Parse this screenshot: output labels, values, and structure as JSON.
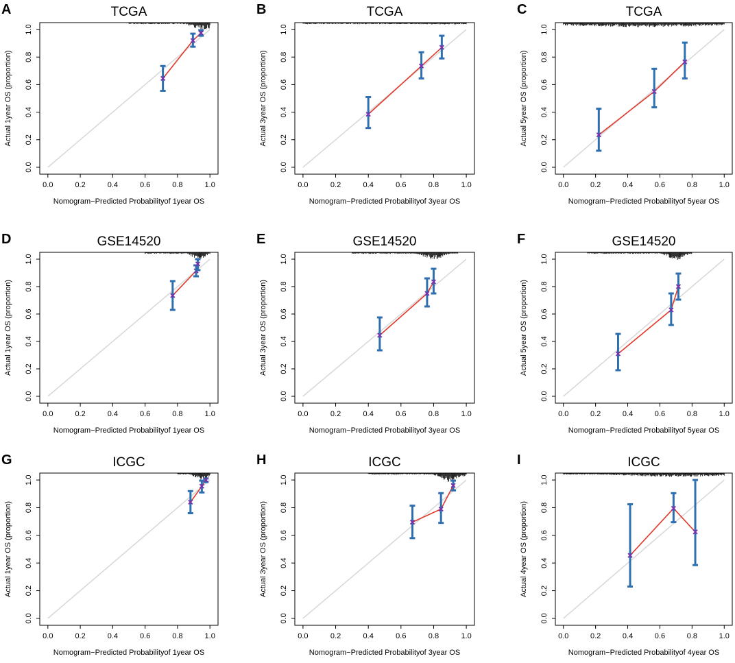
{
  "figure_description": "Calibration curves of nomogram-predicted vs actual overall survival",
  "colors": {
    "frame": "#000000",
    "diagonal": "#d9d9d9",
    "curve": "#e0382b",
    "errorbar": "#2e6fb0",
    "marker": "#7b2fa8",
    "rug": "#000000"
  },
  "chart_data": [
    {
      "type": "scatter",
      "panel_label": "A",
      "title": "TCGA",
      "xlabel": "Nomogram−Predicted Probabilityof 1year OS",
      "ylabel": "Actual 1year OS (proportion)",
      "xlim": [
        -0.05,
        1.05
      ],
      "ylim": [
        -0.05,
        1.05
      ],
      "xticks": [
        "0.0",
        "0.2",
        "0.4",
        "0.6",
        "0.8",
        "1.0"
      ],
      "yticks": [
        "0.0",
        "0.2",
        "0.4",
        "0.6",
        "0.8",
        "1.0"
      ],
      "points": [
        {
          "x": 0.71,
          "y": 0.645,
          "lo": 0.555,
          "hi": 0.735
        },
        {
          "x": 0.895,
          "y": 0.92,
          "lo": 0.875,
          "hi": 0.97
        },
        {
          "x": 0.945,
          "y": 0.975,
          "lo": 0.955,
          "hi": 0.995
        }
      ],
      "rug": {
        "range": [
          0.5,
          1.0
        ],
        "peak": 0.96,
        "spread": 0.07,
        "max_height": 0.045
      }
    },
    {
      "type": "scatter",
      "panel_label": "B",
      "title": "TCGA",
      "xlabel": "Nomogram−Predicted Probabilityof 3year OS",
      "ylabel": "Actual 3year OS (proportion)",
      "xlim": [
        -0.05,
        1.05
      ],
      "ylim": [
        -0.05,
        1.05
      ],
      "xticks": [
        "0.0",
        "0.2",
        "0.4",
        "0.6",
        "0.8",
        "1.0"
      ],
      "yticks": [
        "0.0",
        "0.2",
        "0.4",
        "0.6",
        "0.8",
        "1.0"
      ],
      "points": [
        {
          "x": 0.4,
          "y": 0.385,
          "lo": 0.285,
          "hi": 0.51
        },
        {
          "x": 0.725,
          "y": 0.735,
          "lo": 0.645,
          "hi": 0.835
        },
        {
          "x": 0.85,
          "y": 0.87,
          "lo": 0.79,
          "hi": 0.955
        }
      ],
      "rug": {
        "range": [
          0.0,
          1.0
        ],
        "peak": 0.85,
        "spread": 0.25,
        "max_height": 0.012
      }
    },
    {
      "type": "scatter",
      "panel_label": "C",
      "title": "TCGA",
      "xlabel": "Nomogram−Predicted Probabilityof 5year OS",
      "ylabel": "Actual 5year OS (proportion)",
      "xlim": [
        -0.05,
        1.05
      ],
      "ylim": [
        -0.05,
        1.05
      ],
      "xticks": [
        "0.0",
        "0.2",
        "0.4",
        "0.6",
        "0.8",
        "1.0"
      ],
      "yticks": [
        "0.0",
        "0.2",
        "0.4",
        "0.6",
        "0.8",
        "1.0"
      ],
      "points": [
        {
          "x": 0.22,
          "y": 0.235,
          "lo": 0.12,
          "hi": 0.425
        },
        {
          "x": 0.565,
          "y": 0.55,
          "lo": 0.435,
          "hi": 0.715
        },
        {
          "x": 0.755,
          "y": 0.765,
          "lo": 0.645,
          "hi": 0.905
        }
      ],
      "rug": {
        "range": [
          0.0,
          1.0
        ],
        "peak": 0.5,
        "spread": 0.5,
        "max_height": 0.03
      }
    },
    {
      "type": "scatter",
      "panel_label": "D",
      "title": "GSE14520",
      "xlabel": "Nomogram−Predicted Probabilityof 1year OS",
      "ylabel": "Actual 1year OS (proportion)",
      "xlim": [
        -0.05,
        1.05
      ],
      "ylim": [
        -0.05,
        1.05
      ],
      "xticks": [
        "0.0",
        "0.2",
        "0.4",
        "0.6",
        "0.8",
        "1.0"
      ],
      "yticks": [
        "0.0",
        "0.2",
        "0.4",
        "0.6",
        "0.8",
        "1.0"
      ],
      "points": [
        {
          "x": 0.77,
          "y": 0.735,
          "lo": 0.63,
          "hi": 0.84
        },
        {
          "x": 0.915,
          "y": 0.915,
          "lo": 0.875,
          "hi": 0.955
        },
        {
          "x": 0.925,
          "y": 0.965,
          "lo": 0.92,
          "hi": 1.0
        }
      ],
      "rug": {
        "range": [
          0.6,
          1.0
        ],
        "peak": 0.93,
        "spread": 0.04,
        "max_height": 0.05
      }
    },
    {
      "type": "scatter",
      "panel_label": "E",
      "title": "GSE14520",
      "xlabel": "Nomogram−Predicted Probabilityof 3year OS",
      "ylabel": "Actual 3year OS (proportion)",
      "xlim": [
        -0.05,
        1.05
      ],
      "ylim": [
        -0.05,
        1.05
      ],
      "xticks": [
        "0.0",
        "0.2",
        "0.4",
        "0.6",
        "0.8",
        "1.0"
      ],
      "yticks": [
        "0.0",
        "0.2",
        "0.4",
        "0.6",
        "0.8",
        "1.0"
      ],
      "points": [
        {
          "x": 0.47,
          "y": 0.445,
          "lo": 0.335,
          "hi": 0.575
        },
        {
          "x": 0.76,
          "y": 0.75,
          "lo": 0.655,
          "hi": 0.86
        },
        {
          "x": 0.8,
          "y": 0.835,
          "lo": 0.75,
          "hi": 0.93
        }
      ],
      "rug": {
        "range": [
          0.3,
          0.95
        ],
        "peak": 0.8,
        "spread": 0.06,
        "max_height": 0.05
      }
    },
    {
      "type": "scatter",
      "panel_label": "F",
      "title": "GSE14520",
      "xlabel": "Nomogram−Predicted Probabilityof 5year OS",
      "ylabel": "Actual 5year OS (proportion)",
      "xlim": [
        -0.05,
        1.05
      ],
      "ylim": [
        -0.05,
        1.05
      ],
      "xticks": [
        "0.0",
        "0.2",
        "0.4",
        "0.6",
        "0.8",
        "1.0"
      ],
      "yticks": [
        "0.0",
        "0.2",
        "0.4",
        "0.6",
        "0.8",
        "1.0"
      ],
      "points": [
        {
          "x": 0.34,
          "y": 0.31,
          "lo": 0.19,
          "hi": 0.455
        },
        {
          "x": 0.67,
          "y": 0.63,
          "lo": 0.52,
          "hi": 0.75
        },
        {
          "x": 0.715,
          "y": 0.8,
          "lo": 0.705,
          "hi": 0.895
        }
      ],
      "rug": {
        "range": [
          0.15,
          0.8
        ],
        "peak": 0.7,
        "spread": 0.05,
        "max_height": 0.055
      }
    },
    {
      "type": "scatter",
      "panel_label": "G",
      "title": "ICGC",
      "xlabel": "Nomogram−Predicted Probabilityof 1year OS",
      "ylabel": "Actual 1year OS (proportion)",
      "xlim": [
        -0.05,
        1.05
      ],
      "ylim": [
        -0.05,
        1.05
      ],
      "xticks": [
        "0.0",
        "0.2",
        "0.4",
        "0.6",
        "0.8",
        "1.0"
      ],
      "yticks": [
        "0.0",
        "0.2",
        "0.4",
        "0.6",
        "0.8",
        "1.0"
      ],
      "points": [
        {
          "x": 0.88,
          "y": 0.84,
          "lo": 0.76,
          "hi": 0.92
        },
        {
          "x": 0.95,
          "y": 0.955,
          "lo": 0.91,
          "hi": 0.995
        },
        {
          "x": 0.975,
          "y": 1.0,
          "lo": 0.985,
          "hi": 1.01
        }
      ],
      "rug": {
        "range": [
          0.8,
          1.0
        ],
        "peak": 0.95,
        "spread": 0.04,
        "max_height": 0.05
      }
    },
    {
      "type": "scatter",
      "panel_label": "H",
      "title": "ICGC",
      "xlabel": "Nomogram−Predicted Probabilityof 3year OS",
      "ylabel": "Actual 3year OS (proportion)",
      "xlim": [
        -0.05,
        1.05
      ],
      "ylim": [
        -0.05,
        1.05
      ],
      "xticks": [
        "0.0",
        "0.2",
        "0.4",
        "0.6",
        "0.8",
        "1.0"
      ],
      "yticks": [
        "0.0",
        "0.2",
        "0.4",
        "0.6",
        "0.8",
        "1.0"
      ],
      "points": [
        {
          "x": 0.67,
          "y": 0.695,
          "lo": 0.58,
          "hi": 0.815
        },
        {
          "x": 0.845,
          "y": 0.79,
          "lo": 0.69,
          "hi": 0.905
        },
        {
          "x": 0.92,
          "y": 0.96,
          "lo": 0.925,
          "hi": 0.995
        }
      ],
      "rug": {
        "range": [
          0.4,
          1.0
        ],
        "peak": 0.9,
        "spread": 0.06,
        "max_height": 0.06
      }
    },
    {
      "type": "scatter",
      "panel_label": "I",
      "title": "ICGC",
      "xlabel": "Nomogram−Predicted Probabilityof 4year OS",
      "ylabel": "Actual 4year OS (proportion)",
      "xlim": [
        -0.05,
        1.05
      ],
      "ylim": [
        -0.05,
        1.05
      ],
      "xticks": [
        "0.0",
        "0.2",
        "0.4",
        "0.6",
        "0.8",
        "1.0"
      ],
      "yticks": [
        "0.0",
        "0.2",
        "0.4",
        "0.6",
        "0.8",
        "1.0"
      ],
      "points": [
        {
          "x": 0.415,
          "y": 0.455,
          "lo": 0.23,
          "hi": 0.825
        },
        {
          "x": 0.685,
          "y": 0.795,
          "lo": 0.695,
          "hi": 0.905
        },
        {
          "x": 0.82,
          "y": 0.625,
          "lo": 0.385,
          "hi": 1.0
        }
      ],
      "rug": {
        "range": [
          0.0,
          1.0
        ],
        "peak": 0.7,
        "spread": 0.35,
        "max_height": 0.025
      }
    }
  ]
}
